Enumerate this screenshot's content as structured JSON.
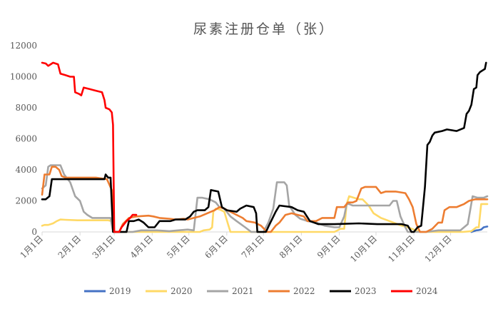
{
  "chart_data": {
    "type": "line",
    "title": "尿素注册仓单（张）",
    "xlabel": "",
    "ylabel": "",
    "ylim": [
      0,
      12000
    ],
    "yticks": [
      0,
      2000,
      4000,
      6000,
      8000,
      10000,
      12000
    ],
    "ytick_labels": [
      "0",
      "2000",
      "4000",
      "6000",
      "8000",
      "10000",
      "12000"
    ],
    "xlim": [
      1,
      365
    ],
    "xticks": [
      1,
      32,
      60,
      91,
      121,
      152,
      182,
      213,
      244,
      274,
      305,
      335
    ],
    "xtick_labels": [
      "1月1日",
      "2月1日",
      "3月1日",
      "4月1日",
      "5月1日",
      "6月1日",
      "7月1日",
      "8月1日",
      "9月1日",
      "10月1日",
      "11月1日",
      "12月1日"
    ],
    "x_unit": "day of year",
    "grid": false,
    "legend_position": "bottom",
    "series": [
      {
        "name": "2019",
        "color": "#4472C4",
        "points": [
          [
            352,
            0
          ],
          [
            356,
            100
          ],
          [
            358,
            120
          ],
          [
            360,
            150
          ],
          [
            362,
            300
          ],
          [
            365,
            350
          ]
        ]
      },
      {
        "name": "2020",
        "color": "#FFD966",
        "points": [
          [
            1,
            400
          ],
          [
            3,
            450
          ],
          [
            6,
            450
          ],
          [
            10,
            550
          ],
          [
            13,
            700
          ],
          [
            16,
            800
          ],
          [
            20,
            780
          ],
          [
            30,
            750
          ],
          [
            45,
            750
          ],
          [
            55,
            750
          ],
          [
            58,
            700
          ],
          [
            60,
            0
          ],
          [
            130,
            0
          ],
          [
            133,
            100
          ],
          [
            138,
            150
          ],
          [
            140,
            300
          ],
          [
            141,
            1300
          ],
          [
            143,
            1500
          ],
          [
            146,
            1450
          ],
          [
            150,
            1300
          ],
          [
            153,
            500
          ],
          [
            155,
            0
          ],
          [
            160,
            0
          ],
          [
            190,
            0
          ],
          [
            215,
            0
          ],
          [
            240,
            0
          ],
          [
            245,
            200
          ],
          [
            248,
            200
          ],
          [
            250,
            1800
          ],
          [
            252,
            2300
          ],
          [
            256,
            2200
          ],
          [
            260,
            2100
          ],
          [
            263,
            2100
          ],
          [
            268,
            1700
          ],
          [
            272,
            1200
          ],
          [
            278,
            900
          ],
          [
            285,
            700
          ],
          [
            295,
            400
          ],
          [
            300,
            300
          ],
          [
            305,
            150
          ],
          [
            310,
            0
          ],
          [
            345,
            0
          ],
          [
            352,
            50
          ],
          [
            356,
            300
          ],
          [
            358,
            300
          ],
          [
            360,
            1800
          ],
          [
            365,
            1800
          ]
        ]
      },
      {
        "name": "2021",
        "color": "#A5A5A5",
        "points": [
          [
            1,
            2800
          ],
          [
            4,
            3000
          ],
          [
            6,
            4200
          ],
          [
            8,
            4300
          ],
          [
            16,
            4300
          ],
          [
            19,
            3700
          ],
          [
            24,
            3200
          ],
          [
            28,
            2300
          ],
          [
            32,
            2000
          ],
          [
            35,
            1300
          ],
          [
            38,
            1100
          ],
          [
            42,
            900
          ],
          [
            50,
            900
          ],
          [
            57,
            900
          ],
          [
            59,
            0
          ],
          [
            75,
            0
          ],
          [
            82,
            100
          ],
          [
            95,
            100
          ],
          [
            105,
            50
          ],
          [
            112,
            100
          ],
          [
            120,
            150
          ],
          [
            125,
            100
          ],
          [
            128,
            2200
          ],
          [
            132,
            2200
          ],
          [
            138,
            2100
          ],
          [
            143,
            1900
          ],
          [
            146,
            1600
          ],
          [
            150,
            1500
          ],
          [
            155,
            1000
          ],
          [
            160,
            700
          ],
          [
            167,
            300
          ],
          [
            172,
            0
          ],
          [
            182,
            0
          ],
          [
            186,
            600
          ],
          [
            190,
            1500
          ],
          [
            193,
            3200
          ],
          [
            199,
            3200
          ],
          [
            201,
            3000
          ],
          [
            203,
            1700
          ],
          [
            208,
            1100
          ],
          [
            212,
            850
          ],
          [
            218,
            700
          ],
          [
            225,
            600
          ],
          [
            232,
            400
          ],
          [
            240,
            300
          ],
          [
            244,
            300
          ],
          [
            248,
            1000
          ],
          [
            250,
            1800
          ],
          [
            252,
            1800
          ],
          [
            255,
            1700
          ],
          [
            260,
            1700
          ],
          [
            270,
            1700
          ],
          [
            280,
            1700
          ],
          [
            285,
            1700
          ],
          [
            288,
            2000
          ],
          [
            291,
            2000
          ],
          [
            294,
            1000
          ],
          [
            298,
            300
          ],
          [
            300,
            0
          ],
          [
            315,
            0
          ],
          [
            325,
            100
          ],
          [
            335,
            100
          ],
          [
            343,
            100
          ],
          [
            349,
            500
          ],
          [
            353,
            2300
          ],
          [
            357,
            2200
          ],
          [
            362,
            2200
          ],
          [
            365,
            2300
          ]
        ]
      },
      {
        "name": "2022",
        "color": "#ED7D31",
        "points": [
          [
            1,
            2400
          ],
          [
            3,
            3700
          ],
          [
            7,
            3700
          ],
          [
            9,
            4200
          ],
          [
            12,
            4200
          ],
          [
            15,
            4000
          ],
          [
            17,
            3600
          ],
          [
            20,
            3500
          ],
          [
            28,
            3500
          ],
          [
            45,
            3500
          ],
          [
            54,
            3400
          ],
          [
            58,
            2700
          ],
          [
            60,
            0
          ],
          [
            64,
            0
          ],
          [
            67,
            500
          ],
          [
            72,
            900
          ],
          [
            78,
            1000
          ],
          [
            88,
            1050
          ],
          [
            92,
            1000
          ],
          [
            97,
            900
          ],
          [
            105,
            850
          ],
          [
            110,
            800
          ],
          [
            117,
            850
          ],
          [
            120,
            800
          ],
          [
            125,
            900
          ],
          [
            130,
            1000
          ],
          [
            136,
            1200
          ],
          [
            142,
            1400
          ],
          [
            146,
            1600
          ],
          [
            150,
            1500
          ],
          [
            155,
            1300
          ],
          [
            160,
            1100
          ],
          [
            165,
            900
          ],
          [
            168,
            700
          ],
          [
            175,
            600
          ],
          [
            180,
            400
          ],
          [
            185,
            0
          ],
          [
            188,
            0
          ],
          [
            192,
            400
          ],
          [
            195,
            600
          ],
          [
            200,
            1100
          ],
          [
            205,
            1200
          ],
          [
            210,
            1100
          ],
          [
            215,
            1000
          ],
          [
            218,
            700
          ],
          [
            225,
            700
          ],
          [
            230,
            900
          ],
          [
            240,
            900
          ],
          [
            242,
            1600
          ],
          [
            248,
            1600
          ],
          [
            251,
            1900
          ],
          [
            255,
            1900
          ],
          [
            258,
            2000
          ],
          [
            262,
            2800
          ],
          [
            265,
            2900
          ],
          [
            274,
            2900
          ],
          [
            278,
            2500
          ],
          [
            282,
            2600
          ],
          [
            290,
            2600
          ],
          [
            298,
            2500
          ],
          [
            301,
            2100
          ],
          [
            304,
            1600
          ],
          [
            307,
            500
          ],
          [
            310,
            0
          ],
          [
            315,
            0
          ],
          [
            320,
            200
          ],
          [
            325,
            600
          ],
          [
            328,
            600
          ],
          [
            330,
            1400
          ],
          [
            334,
            1600
          ],
          [
            340,
            1600
          ],
          [
            343,
            1700
          ],
          [
            346,
            1800
          ],
          [
            350,
            2000
          ],
          [
            355,
            2100
          ],
          [
            365,
            2100
          ]
        ]
      },
      {
        "name": "2023",
        "color": "#000000",
        "points": [
          [
            1,
            2100
          ],
          [
            4,
            2100
          ],
          [
            7,
            2300
          ],
          [
            9,
            3400
          ],
          [
            15,
            3400
          ],
          [
            25,
            3400
          ],
          [
            40,
            3400
          ],
          [
            48,
            3400
          ],
          [
            52,
            3400
          ],
          [
            53,
            3700
          ],
          [
            55,
            3500
          ],
          [
            57,
            3500
          ],
          [
            59,
            0
          ],
          [
            70,
            0
          ],
          [
            72,
            700
          ],
          [
            76,
            700
          ],
          [
            80,
            800
          ],
          [
            84,
            600
          ],
          [
            88,
            300
          ],
          [
            93,
            300
          ],
          [
            97,
            700
          ],
          [
            106,
            700
          ],
          [
            110,
            800
          ],
          [
            118,
            800
          ],
          [
            122,
            1000
          ],
          [
            125,
            1300
          ],
          [
            128,
            1400
          ],
          [
            134,
            1400
          ],
          [
            137,
            1600
          ],
          [
            139,
            2700
          ],
          [
            145,
            2600
          ],
          [
            148,
            1600
          ],
          [
            152,
            1400
          ],
          [
            160,
            1300
          ],
          [
            163,
            1500
          ],
          [
            168,
            1700
          ],
          [
            174,
            1600
          ],
          [
            176,
            1200
          ],
          [
            177,
            0
          ],
          [
            184,
            0
          ],
          [
            187,
            500
          ],
          [
            192,
            1300
          ],
          [
            195,
            1700
          ],
          [
            205,
            1600
          ],
          [
            210,
            1400
          ],
          [
            215,
            1300
          ],
          [
            220,
            700
          ],
          [
            227,
            500
          ],
          [
            240,
            500
          ],
          [
            260,
            550
          ],
          [
            275,
            500
          ],
          [
            295,
            500
          ],
          [
            300,
            400
          ],
          [
            303,
            0
          ],
          [
            305,
            0
          ],
          [
            308,
            300
          ],
          [
            311,
            400
          ],
          [
            314,
            2900
          ],
          [
            316,
            5600
          ],
          [
            318,
            5800
          ],
          [
            320,
            6200
          ],
          [
            322,
            6400
          ],
          [
            328,
            6500
          ],
          [
            332,
            6600
          ],
          [
            340,
            6500
          ],
          [
            346,
            6700
          ],
          [
            348,
            7600
          ],
          [
            350,
            7800
          ],
          [
            352,
            8200
          ],
          [
            354,
            9200
          ],
          [
            356,
            9300
          ],
          [
            357,
            10100
          ],
          [
            359,
            10300
          ],
          [
            361,
            10400
          ],
          [
            363,
            10500
          ],
          [
            364,
            10900
          ]
        ]
      },
      {
        "name": "2024",
        "color": "#FF0000",
        "points": [
          [
            1,
            10900
          ],
          [
            4,
            10850
          ],
          [
            6,
            10700
          ],
          [
            8,
            10800
          ],
          [
            10,
            10900
          ],
          [
            14,
            10800
          ],
          [
            16,
            10200
          ],
          [
            20,
            10100
          ],
          [
            24,
            10000
          ],
          [
            27,
            10000
          ],
          [
            28,
            9000
          ],
          [
            31,
            8900
          ],
          [
            33,
            8800
          ],
          [
            35,
            9300
          ],
          [
            40,
            9200
          ],
          [
            45,
            9100
          ],
          [
            50,
            9000
          ],
          [
            52,
            8500
          ],
          [
            53,
            8000
          ],
          [
            56,
            7900
          ],
          [
            58,
            7700
          ],
          [
            59,
            6900
          ],
          [
            60,
            0
          ],
          [
            64,
            0
          ],
          [
            66,
            300
          ],
          [
            70,
            700
          ],
          [
            73,
            900
          ],
          [
            75,
            1100
          ],
          [
            78,
            1100
          ]
        ]
      }
    ]
  }
}
